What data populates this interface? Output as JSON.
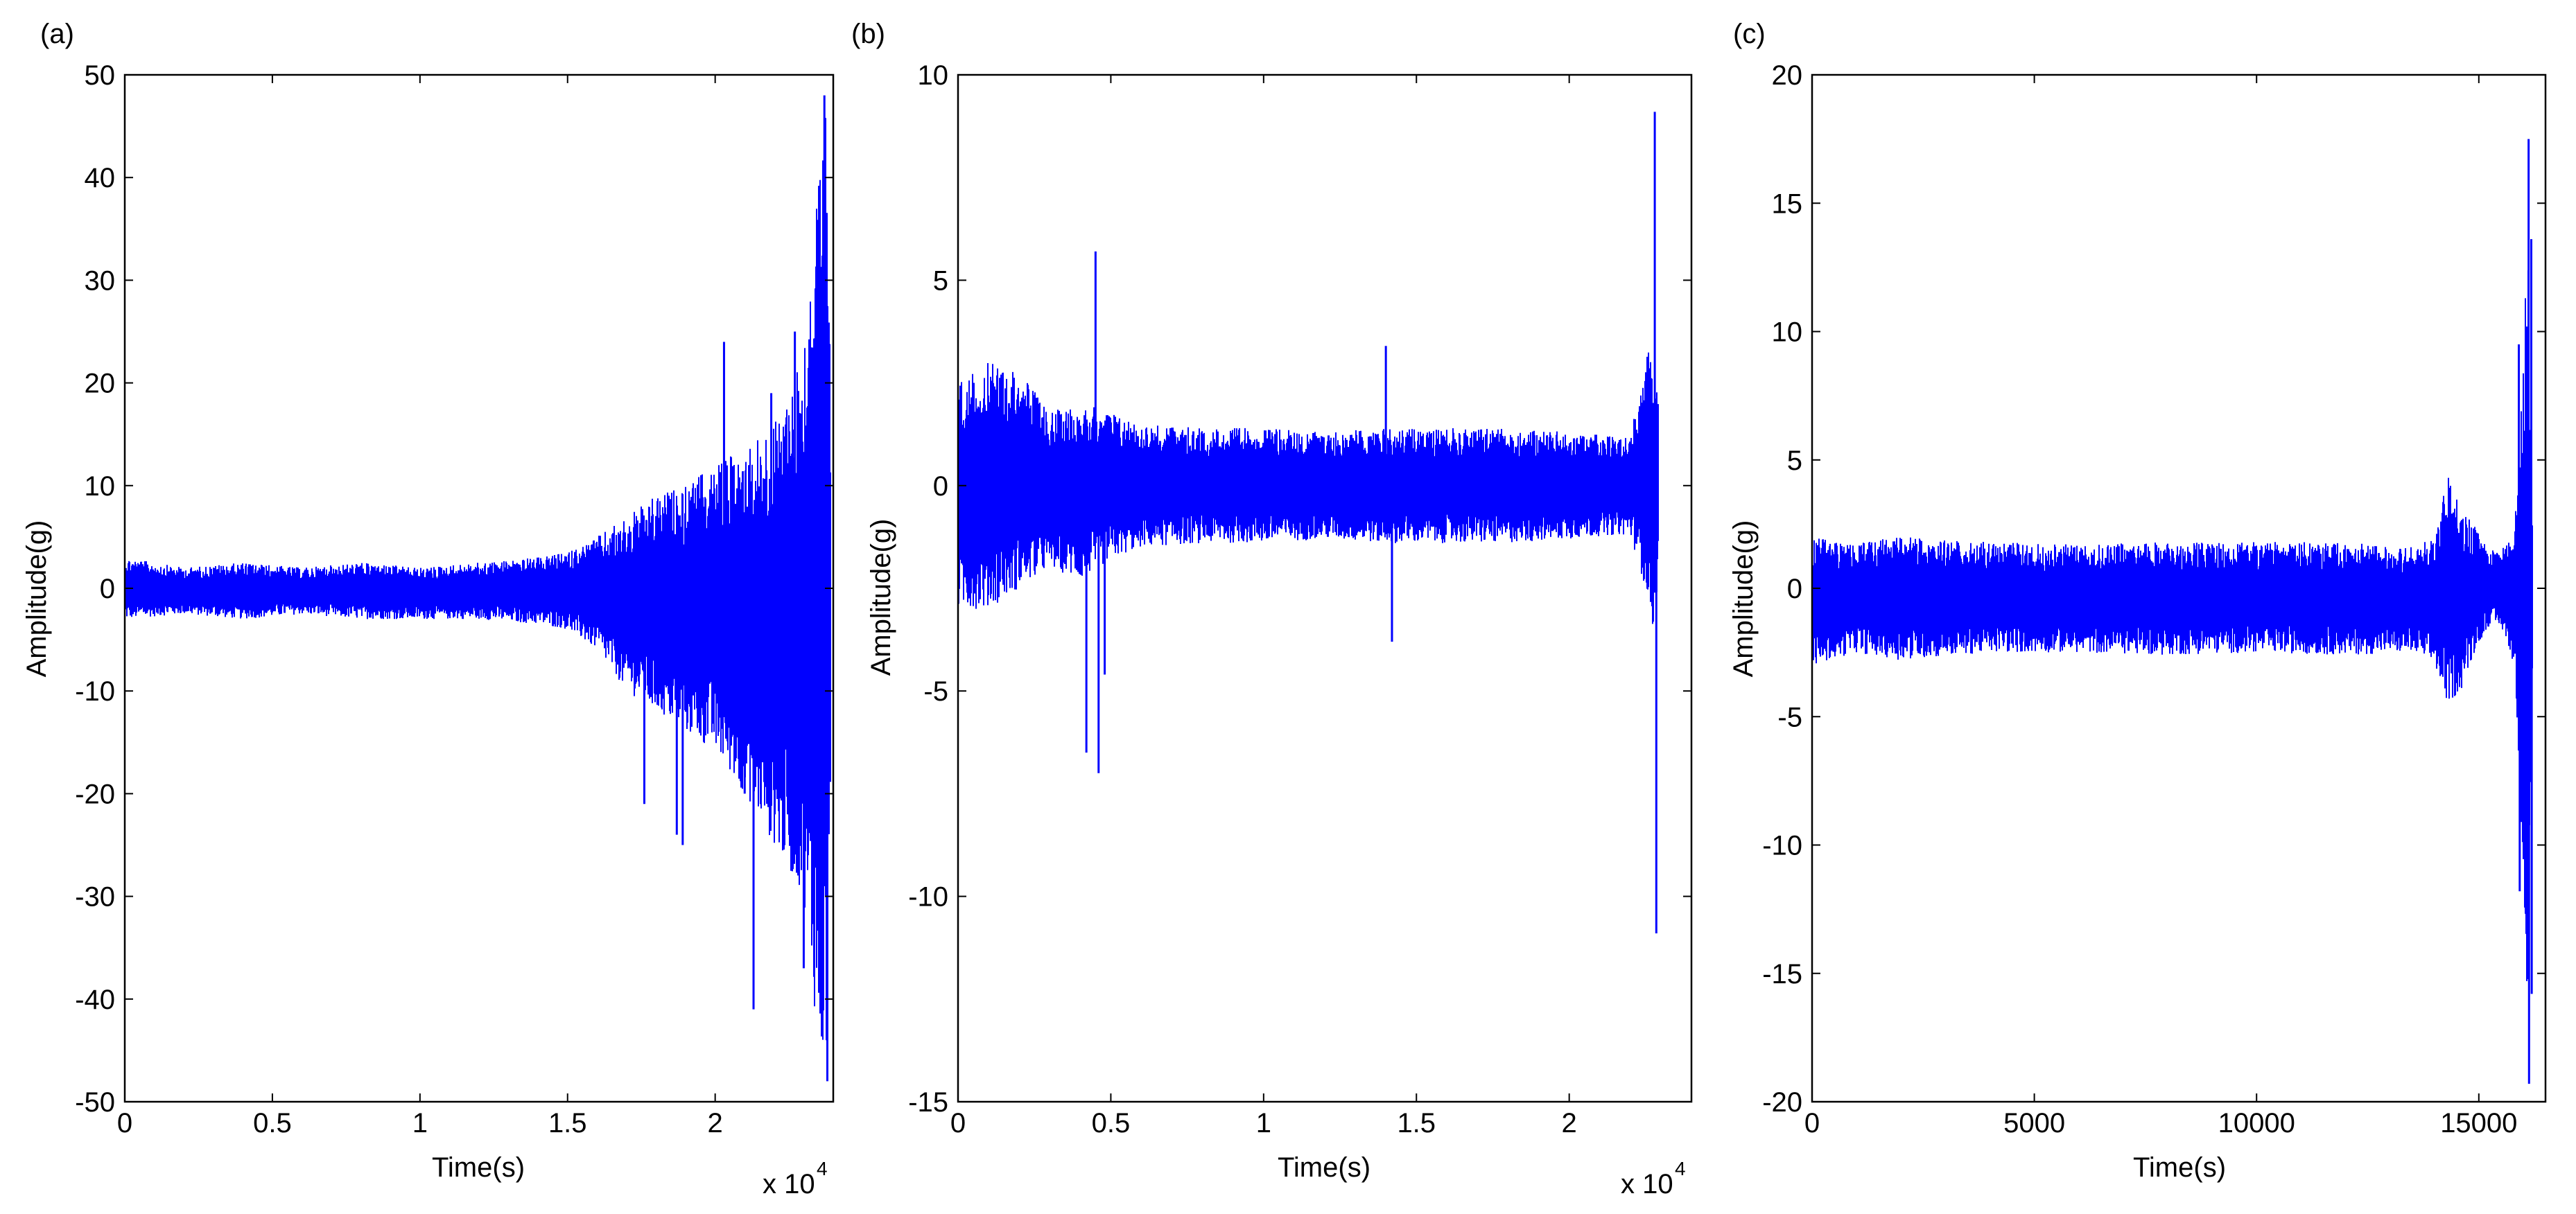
{
  "figure": {
    "background": "#ffffff",
    "trace_color": "#0000ff",
    "axis_color": "#000000"
  },
  "chart_data": [
    {
      "type": "line",
      "panel_label": "(a)",
      "title": "",
      "xlabel": "Time(s)",
      "ylabel": "Amplitude(g)",
      "x_multiplier": "x 10",
      "x_multiplier_exp": "4",
      "xlim": [
        0,
        2.4
      ],
      "ylim": [
        -50,
        50
      ],
      "xticks": [
        0,
        0.5,
        1,
        1.5,
        2
      ],
      "xtick_labels": [
        "0",
        "0.5",
        "1",
        "1.5",
        "2"
      ],
      "yticks": [
        -50,
        -40,
        -30,
        -20,
        -10,
        0,
        10,
        20,
        30,
        40,
        50
      ],
      "ytick_labels": [
        "-50",
        "-40",
        "-30",
        "-20",
        "-10",
        "0",
        "10",
        "20",
        "30",
        "40",
        "50"
      ],
      "grid": false,
      "legend": "none",
      "series": [
        {
          "color": "#0000ff",
          "envelope": {
            "x": [
              0,
              0.2,
              0.4,
              0.6,
              0.8,
              1.0,
              1.2,
              1.4,
              1.5,
              1.6,
              1.7,
              1.8,
              1.9,
              2.0,
              2.1,
              2.2,
              2.3,
              2.35,
              2.38,
              2.39
            ],
            "upper": [
              3,
              2,
              2.5,
              2,
              2.5,
              2,
              2.5,
              3,
              3.5,
              5,
              7,
              9,
              10,
              12,
              14,
              16,
              24,
              41,
              48,
              20
            ],
            "lower": [
              -3,
              -2.5,
              -3,
              -2.5,
              -3,
              -3,
              -3,
              -3.5,
              -4,
              -6,
              -10,
              -12,
              -14,
              -16,
              -20,
              -25,
              -30,
              -45,
              -48,
              -20
            ]
          },
          "spikes": [
            {
              "x": 1.76,
              "y": -21
            },
            {
              "x": 1.87,
              "y": -24
            },
            {
              "x": 1.89,
              "y": -25
            },
            {
              "x": 2.03,
              "y": 24
            },
            {
              "x": 2.1,
              "y": -20
            },
            {
              "x": 2.13,
              "y": -41
            },
            {
              "x": 2.19,
              "y": 19
            },
            {
              "x": 2.27,
              "y": 25
            },
            {
              "x": 2.3,
              "y": -37
            },
            {
              "x": 2.37,
              "y": 48
            },
            {
              "x": 2.38,
              "y": -48
            }
          ]
        }
      ]
    },
    {
      "type": "line",
      "panel_label": "(b)",
      "title": "",
      "xlabel": "Time(s)",
      "ylabel": "Amplitude(g)",
      "x_multiplier": "x 10",
      "x_multiplier_exp": "4",
      "xlim": [
        0,
        2.4
      ],
      "ylim": [
        -15,
        10
      ],
      "xticks": [
        0,
        0.5,
        1,
        1.5,
        2
      ],
      "xtick_labels": [
        "0",
        "0.5",
        "1",
        "1.5",
        "2"
      ],
      "yticks": [
        -15,
        -10,
        -5,
        0,
        5,
        10
      ],
      "ytick_labels": [
        "-15",
        "-10",
        "-5",
        "0",
        "5",
        "10"
      ],
      "grid": false,
      "legend": "none",
      "series": [
        {
          "color": "#0000ff",
          "envelope": {
            "x": [
              0,
              0.1,
              0.2,
              0.3,
              0.4,
              0.5,
              0.6,
              0.8,
              1.0,
              1.2,
              1.4,
              1.6,
              1.8,
              2.0,
              2.15,
              2.2,
              2.25,
              2.28,
              2.29
            ],
            "upper": [
              2.5,
              3,
              2.8,
              1.8,
              2,
              1.8,
              1.5,
              1.4,
              1.4,
              1.3,
              1.4,
              1.4,
              1.4,
              1.3,
              1.2,
              1.2,
              3.2,
              3.5,
              2
            ],
            "lower": [
              -3,
              -3,
              -2.5,
              -2,
              -2.3,
              -1.8,
              -1.5,
              -1.4,
              -1.4,
              -1.3,
              -1.4,
              -1.4,
              -1.4,
              -1.3,
              -1.2,
              -1.2,
              -2.5,
              -3.8,
              -2
            ]
          },
          "spikes": [
            {
              "x": 0.42,
              "y": -6.5
            },
            {
              "x": 0.45,
              "y": 5.7
            },
            {
              "x": 0.46,
              "y": -7
            },
            {
              "x": 0.48,
              "y": -4.6
            },
            {
              "x": 1.4,
              "y": 3.4
            },
            {
              "x": 1.42,
              "y": -3.8
            },
            {
              "x": 2.28,
              "y": 9.1
            },
            {
              "x": 2.285,
              "y": -10.9
            }
          ]
        }
      ]
    },
    {
      "type": "line",
      "panel_label": "(c)",
      "title": "",
      "xlabel": "Time(s)",
      "ylabel": "Amplitude(g)",
      "x_multiplier": "",
      "x_multiplier_exp": "",
      "xlim": [
        0,
        16500
      ],
      "ylim": [
        -20,
        20
      ],
      "xticks": [
        0,
        5000,
        10000,
        15000
      ],
      "xtick_labels": [
        "0",
        "5000",
        "10000",
        "15000"
      ],
      "yticks": [
        -20,
        -15,
        -10,
        -5,
        0,
        5,
        10,
        15,
        20
      ],
      "ytick_labels": [
        "-20",
        "-15",
        "-10",
        "-5",
        "0",
        "5",
        "10",
        "15",
        "20"
      ],
      "grid": false,
      "legend": "none",
      "series": [
        {
          "color": "#0000ff",
          "envelope": {
            "x": [
              0,
              1000,
              2000,
              4000,
              6000,
              8000,
              10000,
              12000,
              13500,
              14000,
              14300,
              14600,
              14900,
              15200,
              15500,
              15800,
              16000,
              16100,
              16200
            ],
            "upper": [
              2,
              1.8,
              2,
              1.8,
              1.7,
              1.8,
              1.8,
              1.8,
              1.6,
              2,
              4.5,
              3,
              2.5,
              1.5,
              1.5,
              2,
              9,
              17.5,
              4
            ],
            "lower": [
              -3,
              -2.5,
              -2.8,
              -2.5,
              -2.5,
              -2.6,
              -2.5,
              -2.6,
              -2.5,
              -3,
              -4.5,
              -4,
              -2.5,
              -1.5,
              -1.5,
              -3,
              -11,
              -19,
              -4
            ]
          },
          "spikes": [
            {
              "x": 15900,
              "y": 9.5
            },
            {
              "x": 15920,
              "y": -11.8
            },
            {
              "x": 16120,
              "y": 17.5
            },
            {
              "x": 16130,
              "y": -19.3
            },
            {
              "x": 16180,
              "y": 13.6
            },
            {
              "x": 16190,
              "y": -15.8
            }
          ]
        }
      ]
    }
  ]
}
